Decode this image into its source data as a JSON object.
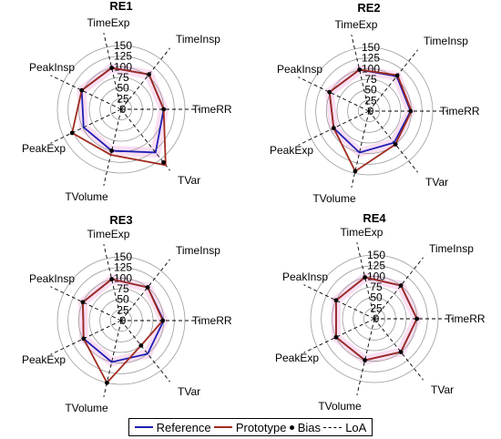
{
  "chart_data": [
    {
      "type": "radar",
      "title": "RE1",
      "axes": [
        "TimeRR",
        "TimeInsp",
        "TimeExp",
        "PeakInsp",
        "PeakExp",
        "TVolume",
        "TVar"
      ],
      "rticks": [
        "0",
        "25",
        "50",
        "75",
        "100",
        "125",
        "150"
      ],
      "rlim": [
        0,
        150
      ],
      "series": [
        {
          "name": "Reference",
          "values": [
            100,
            105,
            100,
            103,
            98,
            100,
            130
          ]
        },
        {
          "name": "Prototype",
          "values": [
            100,
            105,
            100,
            103,
            128,
            110,
            168
          ]
        },
        {
          "name": "Bias",
          "values": [
            100,
            105,
            100,
            103,
            128,
            100,
            160
          ]
        }
      ]
    },
    {
      "type": "radar",
      "title": "RE2",
      "axes": [
        "TimeRR",
        "TimeInsp",
        "TimeExp",
        "PeakInsp",
        "PeakExp",
        "TVolume",
        "TVar"
      ],
      "rticks": [
        "0",
        "25",
        "50",
        "75",
        "100",
        "125",
        "150"
      ],
      "rlim": [
        0,
        150
      ],
      "series": [
        {
          "name": "Reference",
          "values": [
            98,
            105,
            100,
            103,
            92,
            100,
            95
          ]
        },
        {
          "name": "Prototype",
          "values": [
            100,
            108,
            100,
            103,
            92,
            145,
            100
          ]
        },
        {
          "name": "Bias",
          "values": [
            98,
            107,
            100,
            103,
            92,
            145,
            100
          ]
        }
      ]
    },
    {
      "type": "radar",
      "title": "RE3",
      "axes": [
        "TimeRR",
        "TimeInsp",
        "TimeExp",
        "PeakInsp",
        "PeakExp",
        "TVolume",
        "TVar"
      ],
      "rticks": [
        "0",
        "25",
        "50",
        "75",
        "100",
        "125",
        "150"
      ],
      "rlim": [
        0,
        150
      ],
      "series": [
        {
          "name": "Reference",
          "values": [
            100,
            100,
            100,
            100,
            98,
            100,
            100
          ]
        },
        {
          "name": "Prototype",
          "values": [
            98,
            100,
            100,
            100,
            98,
            150,
            75
          ]
        },
        {
          "name": "Bias",
          "values": [
            98,
            100,
            100,
            100,
            98,
            150,
            75
          ]
        }
      ]
    },
    {
      "type": "radar",
      "title": "RE4",
      "axes": [
        "TimeRR",
        "TimeInsp",
        "TimeExp",
        "PeakInsp",
        "PeakExp",
        "TVolume",
        "TVar"
      ],
      "rticks": [
        "0",
        "25",
        "50",
        "75",
        "100",
        "125",
        "150"
      ],
      "rlim": [
        0,
        150
      ],
      "series": [
        {
          "name": "Reference",
          "values": [
            100,
            100,
            100,
            100,
            100,
            100,
            100
          ]
        },
        {
          "name": "Prototype",
          "values": [
            100,
            100,
            100,
            100,
            100,
            100,
            100
          ]
        },
        {
          "name": "Bias",
          "values": [
            100,
            100,
            100,
            100,
            100,
            100,
            100
          ]
        }
      ]
    }
  ],
  "legend": {
    "reference": "Reference",
    "prototype": "Prototype",
    "bias": "Bias",
    "loa": "LoA"
  },
  "colors": {
    "reference": "#1f1fb4",
    "prototype": "#a02b1e",
    "bias": "#000000",
    "loa_fill": "#f3b9e3",
    "grid": "#9a9a9a"
  }
}
